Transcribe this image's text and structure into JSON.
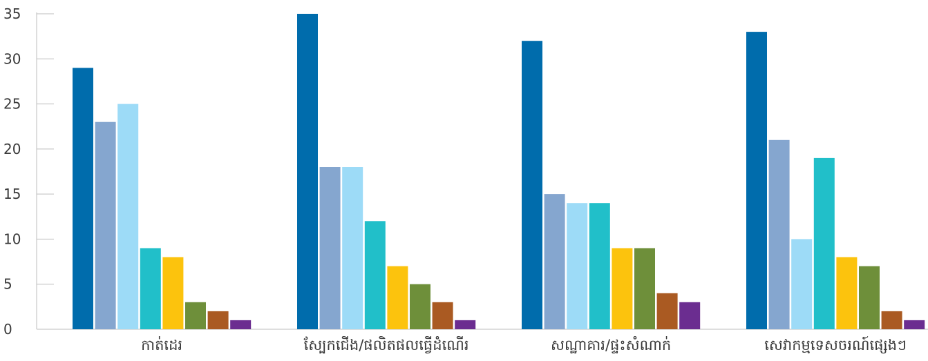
{
  "chart_data": {
    "type": "bar",
    "categories": [
      "កាត់ដេរ",
      "ស្បែកជើង/ផលិតផលធ្វើដំណើរ",
      "សណ្ឋាគារ/ផ្ទះសំណាក់",
      "សេវាកម្មទេសចរណ៍ផ្សេងៗ"
    ],
    "series": [
      {
        "color": "#006cac",
        "values": [
          29,
          35,
          32,
          33
        ]
      },
      {
        "color": "#85a6cf",
        "values": [
          23,
          18,
          15,
          21
        ]
      },
      {
        "color": "#9ddbf7",
        "values": [
          25,
          18,
          14,
          10
        ]
      },
      {
        "color": "#21bfc9",
        "values": [
          9,
          12,
          14,
          19
        ]
      },
      {
        "color": "#fcc30d",
        "values": [
          8,
          7,
          9,
          8
        ]
      },
      {
        "color": "#6e8f3a",
        "values": [
          3,
          5,
          9,
          7
        ]
      },
      {
        "color": "#aa5a22",
        "values": [
          2,
          3,
          4,
          2
        ]
      },
      {
        "color": "#6b2d90",
        "values": [
          1,
          1,
          3,
          1
        ]
      }
    ],
    "yticks": [
      "0",
      "5",
      "10",
      "15",
      "20",
      "25",
      "30",
      "35"
    ],
    "ylim": [
      0,
      35
    ],
    "title": "",
    "xlabel": "",
    "ylabel": "",
    "grid": false,
    "legend": "none"
  }
}
